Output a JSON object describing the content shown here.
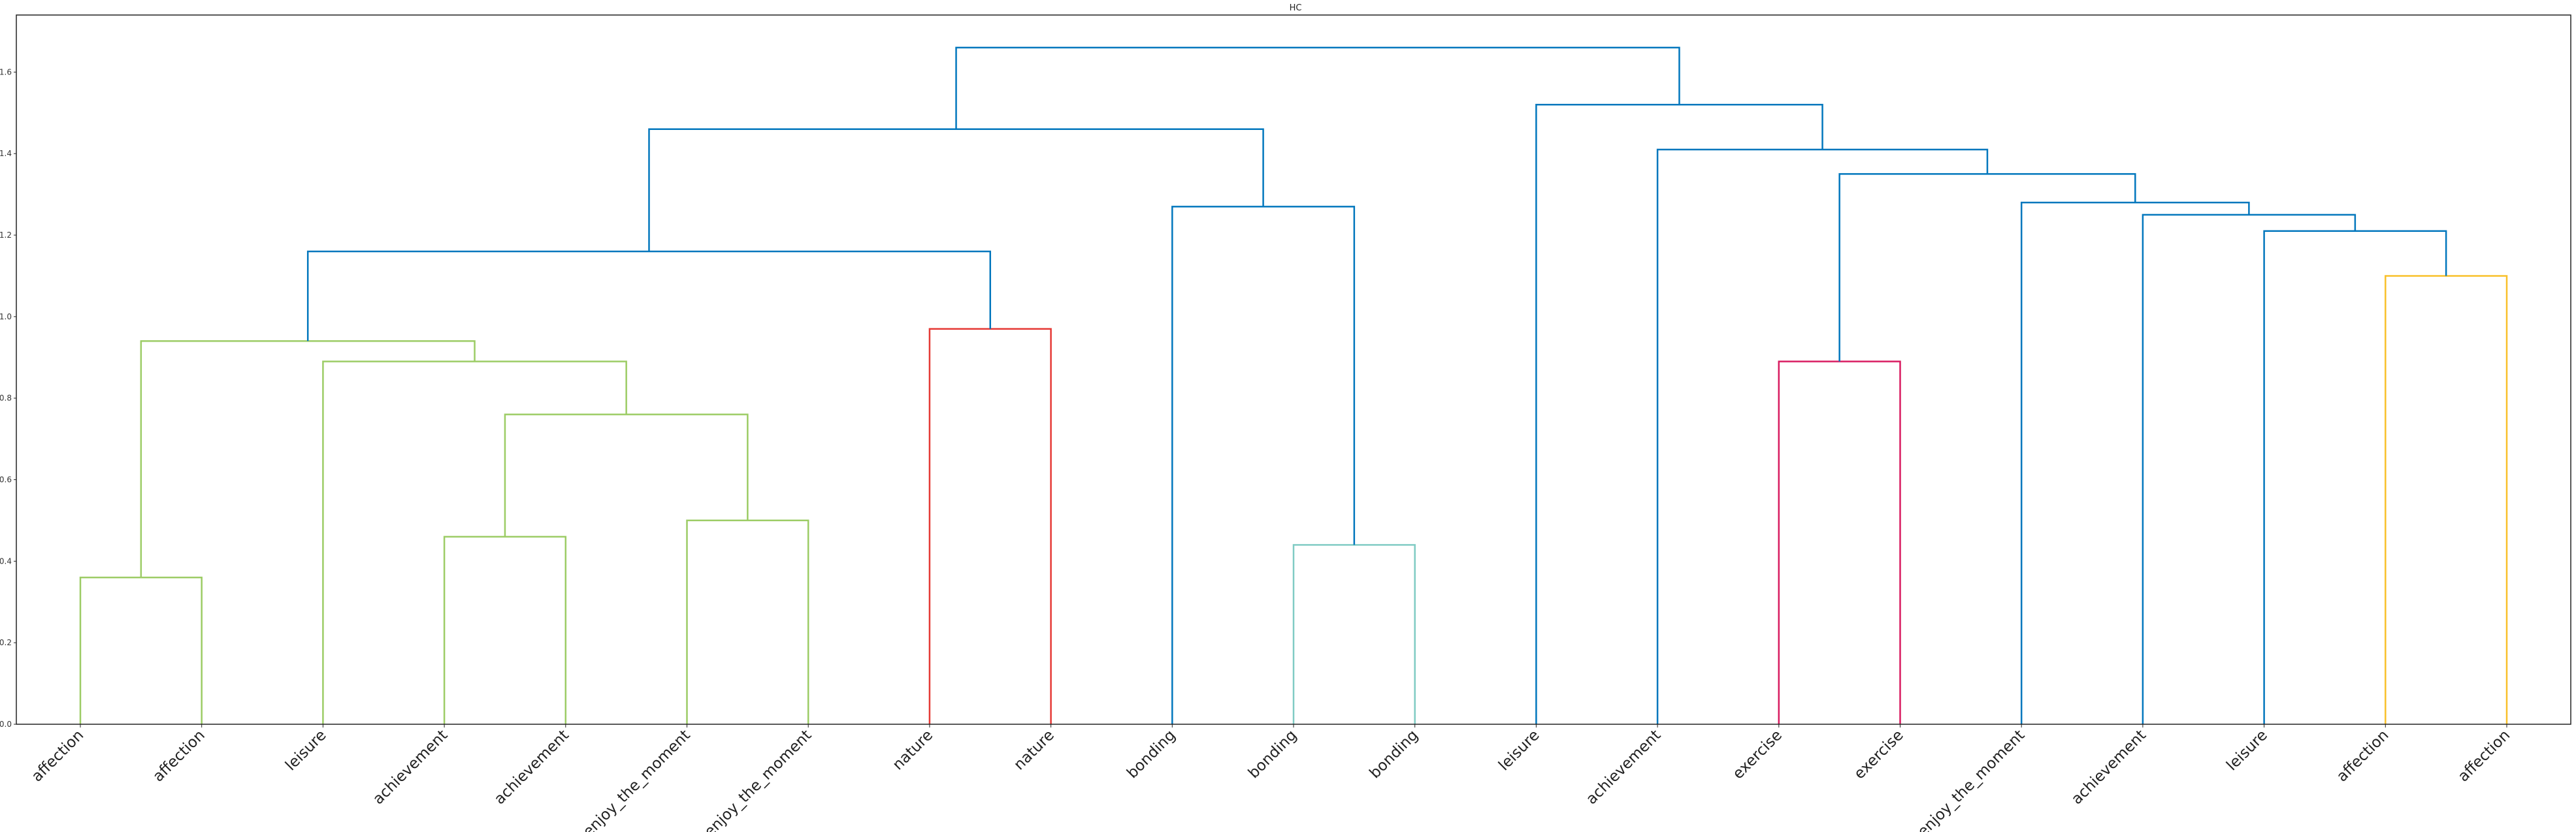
{
  "chart_data": {
    "type": "dendrogram",
    "title": "HC",
    "xlabel": "",
    "ylabel": "",
    "ylim": [
      0,
      1.74
    ],
    "yticks": [
      "0.0",
      "0.2",
      "0.4",
      "0.6",
      "0.8",
      "1.0",
      "1.2",
      "1.4",
      "1.6"
    ],
    "grid": false,
    "leaves": [
      "affection",
      "affection",
      "leisure",
      "achievement",
      "achievement",
      "enjoy_the_moment",
      "enjoy_the_moment",
      "nature",
      "nature",
      "bonding",
      "bonding",
      "bonding",
      "leisure",
      "achievement",
      "exercise",
      "exercise",
      "enjoy_the_moment",
      "achievement",
      "leisure",
      "affection",
      "affection"
    ],
    "merges": [
      {
        "left": "L0",
        "right": "L1",
        "height": 0.36,
        "color": "#9ccc65"
      },
      {
        "left": "L3",
        "right": "L4",
        "height": 0.46,
        "color": "#9ccc65"
      },
      {
        "left": "L5",
        "right": "L6",
        "height": 0.5,
        "color": "#9ccc65"
      },
      {
        "left": "M1",
        "right": "M2",
        "height": 0.76,
        "color": "#9ccc65"
      },
      {
        "left": "L2",
        "right": "M3",
        "height": 0.89,
        "color": "#9ccc65"
      },
      {
        "left": "M0",
        "right": "M4",
        "height": 0.94,
        "color": "#9ccc65"
      },
      {
        "left": "L7",
        "right": "L8",
        "height": 0.97,
        "color": "#e53935"
      },
      {
        "left": "M5",
        "right": "M6",
        "height": 1.16,
        "color": "#0277bd"
      },
      {
        "left": "L10",
        "right": "L11",
        "height": 0.44,
        "color": "#80cbc4"
      },
      {
        "left": "L9",
        "right": "M8",
        "height": 1.27,
        "color": "#0277bd"
      },
      {
        "left": "M7",
        "right": "M9",
        "height": 1.46,
        "color": "#0277bd"
      },
      {
        "left": "L14",
        "right": "L15",
        "height": 0.89,
        "color": "#d81b60"
      },
      {
        "left": "L19",
        "right": "L20",
        "height": 1.1,
        "color": "#f9c02a"
      },
      {
        "left": "L18",
        "right": "M12",
        "height": 1.21,
        "color": "#0277bd"
      },
      {
        "left": "L17",
        "right": "M13",
        "height": 1.25,
        "color": "#0277bd"
      },
      {
        "left": "L16",
        "right": "M14",
        "height": 1.28,
        "color": "#0277bd"
      },
      {
        "left": "M11",
        "right": "M15",
        "height": 1.35,
        "color": "#0277bd"
      },
      {
        "left": "L13",
        "right": "M16",
        "height": 1.41,
        "color": "#0277bd"
      },
      {
        "left": "L12",
        "right": "M17",
        "height": 1.52,
        "color": "#0277bd"
      },
      {
        "left": "M10",
        "right": "M18",
        "height": 1.66,
        "color": "#0277bd"
      }
    ]
  }
}
